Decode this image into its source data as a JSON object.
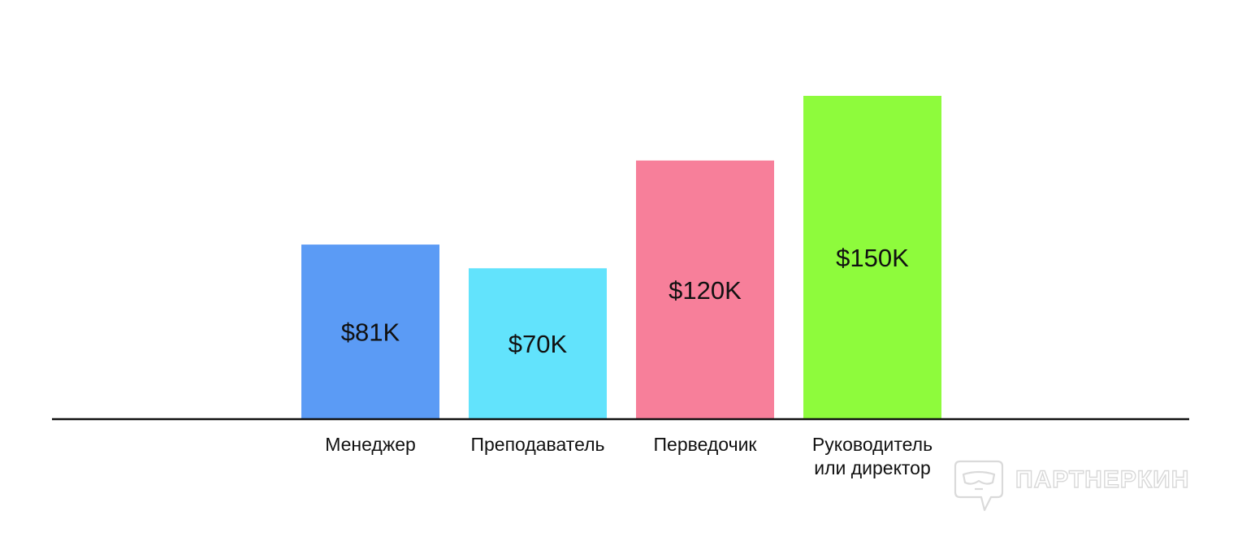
{
  "chart_data": {
    "type": "bar",
    "categories": [
      [
        "Менеджер"
      ],
      [
        "Преподаватель"
      ],
      [
        "Перведочик"
      ],
      [
        "Руководитель",
        "или директор"
      ]
    ],
    "values": [
      81,
      70,
      120,
      150
    ],
    "value_labels": [
      "$81K",
      "$70K",
      "$120K",
      "$150K"
    ],
    "colors": [
      "#5B9BF5",
      "#62E3FC",
      "#F77F9A",
      "#8EFB3C"
    ],
    "ylim": [
      0,
      150
    ],
    "grid": false,
    "title": "",
    "xlabel": "",
    "ylabel": ""
  },
  "watermark": {
    "text": "ПАРТНЕРКИН",
    "icon": "chat-bubble-mask-icon"
  }
}
